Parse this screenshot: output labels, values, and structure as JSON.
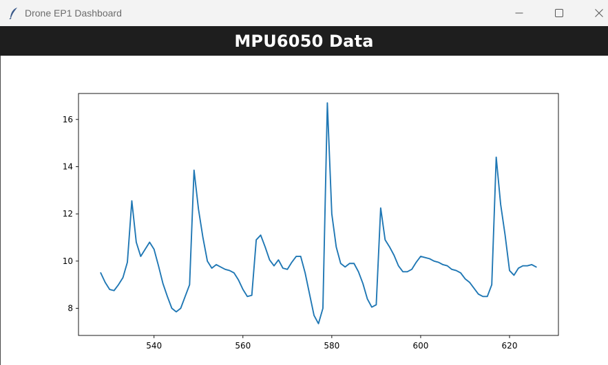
{
  "window": {
    "title": "Drone EP1 Dashboard",
    "app_icon": "feather-icon",
    "controls": [
      "minimize-icon",
      "maximize-icon",
      "close-icon"
    ]
  },
  "header": {
    "title": "MPU6050 Data",
    "background": "#1e1e1e",
    "color": "#ffffff"
  },
  "chart_data": {
    "type": "line",
    "title": "",
    "xlabel": "",
    "ylabel": "",
    "xlim": [
      523,
      631
    ],
    "ylim": [
      6.85,
      17.1
    ],
    "xticks": [
      540,
      560,
      580,
      600,
      620
    ],
    "yticks": [
      8,
      10,
      12,
      14,
      16
    ],
    "grid": false,
    "series": [
      {
        "color": "#1f77b4",
        "x": [
          528,
          529,
          530,
          531,
          532,
          533,
          534,
          535,
          536,
          537,
          538,
          539,
          540,
          541,
          542,
          543,
          544,
          545,
          546,
          547,
          548,
          549,
          550,
          551,
          552,
          553,
          554,
          555,
          556,
          557,
          558,
          559,
          560,
          561,
          562,
          563,
          564,
          565,
          566,
          567,
          568,
          569,
          570,
          571,
          572,
          573,
          574,
          575,
          576,
          577,
          578,
          579,
          580,
          581,
          582,
          583,
          584,
          585,
          586,
          587,
          588,
          589,
          590,
          591,
          592,
          593,
          594,
          595,
          596,
          597,
          598,
          599,
          600,
          601,
          602,
          603,
          604,
          605,
          606,
          607,
          608,
          609,
          610,
          611,
          612,
          613,
          614,
          615,
          616,
          617,
          618,
          619,
          620,
          621,
          622,
          623,
          624,
          625,
          626
        ],
        "y": [
          9.5,
          9.1,
          8.8,
          8.75,
          9.0,
          9.3,
          9.95,
          12.55,
          10.8,
          10.2,
          10.5,
          10.8,
          10.5,
          9.8,
          9.05,
          8.5,
          8.0,
          7.85,
          8.0,
          8.5,
          9.0,
          13.85,
          12.2,
          11.0,
          10.0,
          9.7,
          9.85,
          9.75,
          9.65,
          9.6,
          9.5,
          9.2,
          8.8,
          8.5,
          8.55,
          10.9,
          11.1,
          10.6,
          10.05,
          9.8,
          10.05,
          9.7,
          9.65,
          9.95,
          10.2,
          10.2,
          9.5,
          8.6,
          7.7,
          7.35,
          8.0,
          16.7,
          12.0,
          10.6,
          9.9,
          9.75,
          9.9,
          9.9,
          9.55,
          9.05,
          8.4,
          8.05,
          8.15,
          12.25,
          10.9,
          10.6,
          10.25,
          9.8,
          9.55,
          9.55,
          9.65,
          9.95,
          10.2,
          10.15,
          10.1,
          10.0,
          9.95,
          9.85,
          9.8,
          9.65,
          9.6,
          9.5,
          9.25,
          9.1,
          8.85,
          8.6,
          8.5,
          8.5,
          9.0,
          14.4,
          12.4,
          11.1,
          9.6,
          9.4,
          9.7,
          9.8,
          9.8,
          9.85,
          9.75
        ]
      }
    ]
  }
}
